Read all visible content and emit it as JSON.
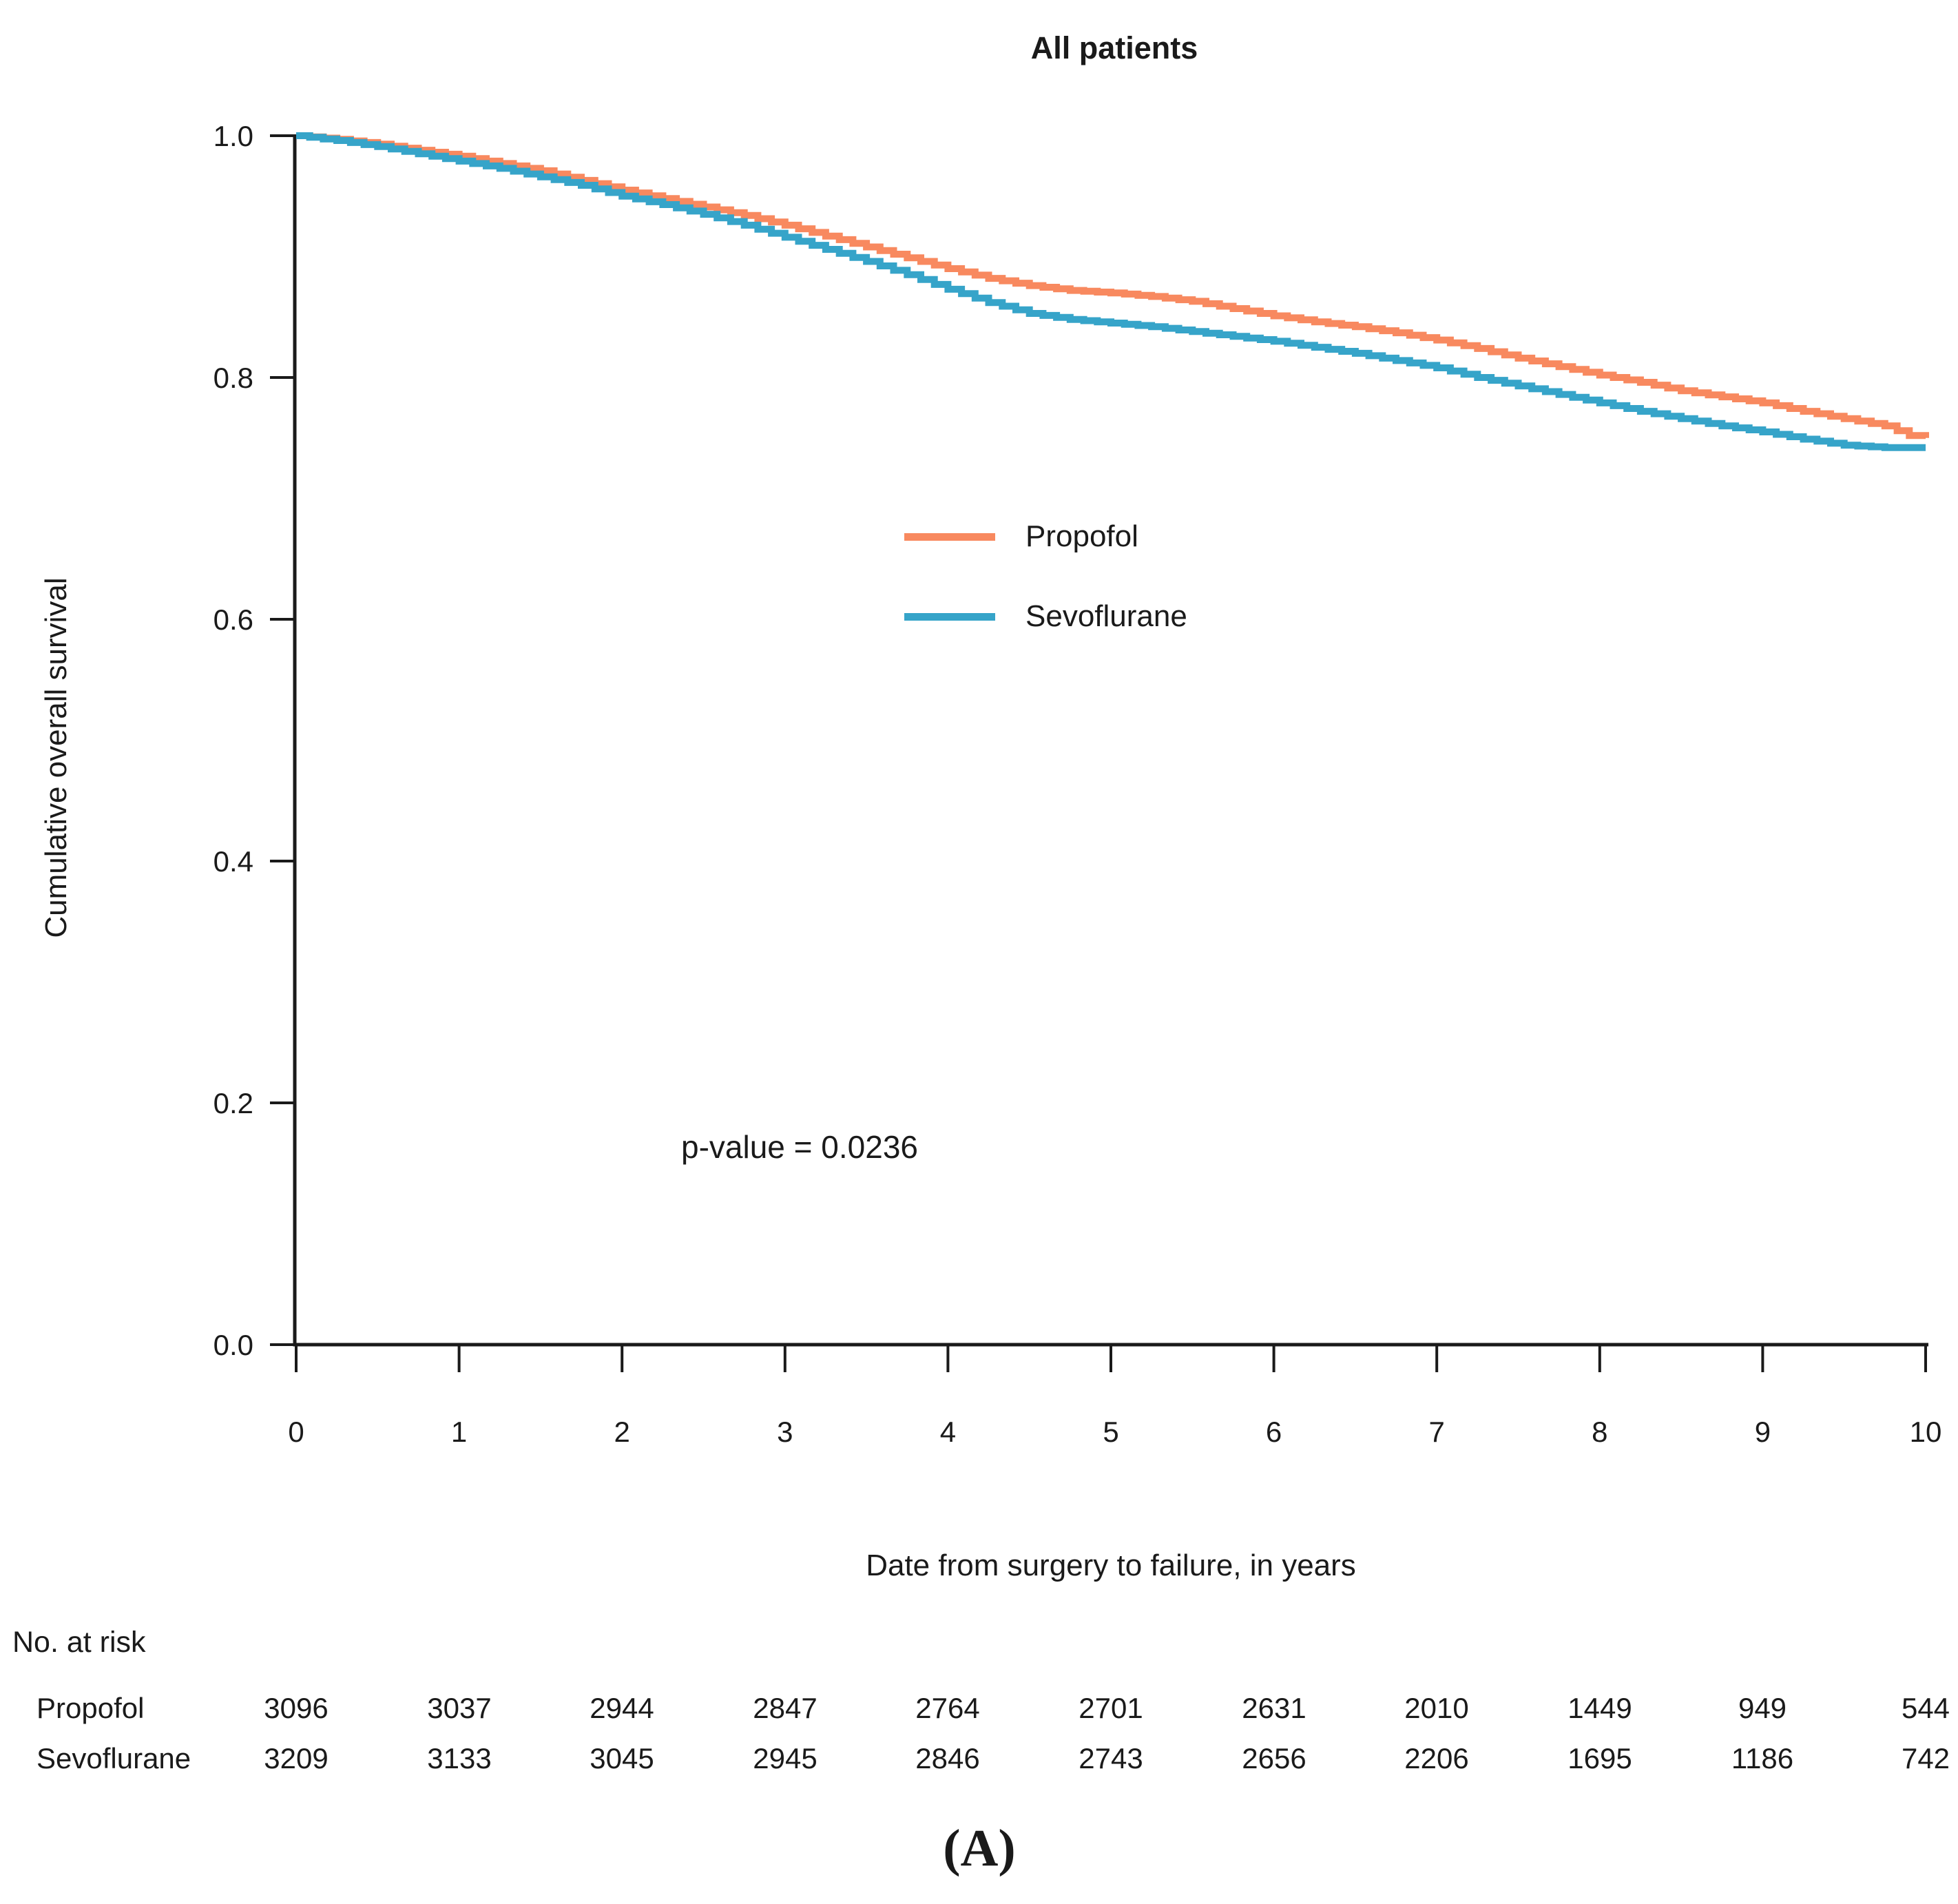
{
  "title": "All patients",
  "colors": {
    "propofol": "#F8895F",
    "sevoflurane": "#36A4C9",
    "axis": "#1a1a1a"
  },
  "legend": [
    {
      "label": "Propofol",
      "color": "#F8895F"
    },
    {
      "label": "Sevoflurane",
      "color": "#36A4C9"
    }
  ],
  "pvalue_text": "p-value = 0.0236",
  "ylabel": "Cumulative overall survival",
  "xlabel": "Date from surgery to failure, in years",
  "risk_table": {
    "header": "No. at risk",
    "rows": [
      {
        "label": "Propofol",
        "counts": [
          3096,
          3037,
          2944,
          2847,
          2764,
          2701,
          2631,
          2010,
          1449,
          949,
          544
        ]
      },
      {
        "label": "Sevoflurane",
        "counts": [
          3209,
          3133,
          3045,
          2945,
          2846,
          2743,
          2656,
          2206,
          1695,
          1186,
          742
        ]
      }
    ]
  },
  "caption": "(A)",
  "chart_data": {
    "type": "line",
    "subtype": "kaplan-meier-step",
    "title": "All patients",
    "xlabel": "Date from surgery to failure, in years",
    "ylabel": "Cumulative overall survival",
    "xlim": [
      0,
      10
    ],
    "ylim": [
      0.0,
      1.0
    ],
    "xticks": [
      0,
      1,
      2,
      3,
      4,
      5,
      6,
      7,
      8,
      9,
      10
    ],
    "xtick_labels": [
      "0",
      "1",
      "2",
      "3",
      "4",
      "5",
      "6",
      "7",
      "8",
      "9",
      "10"
    ],
    "yticks": [
      0.0,
      0.2,
      0.4,
      0.6,
      0.8,
      1.0
    ],
    "ytick_labels": [
      "0.0",
      "0.2",
      "0.4",
      "0.6",
      "0.8",
      "1.0"
    ],
    "grid": false,
    "legend_position": "upper-middle-left-of-plot",
    "annotation": "p-value = 0.0236",
    "series": [
      {
        "name": "Propofol",
        "color": "#F8895F",
        "points": [
          [
            0,
            1.0
          ],
          [
            0.25,
            0.997
          ],
          [
            0.5,
            0.993
          ],
          [
            0.75,
            0.988
          ],
          [
            1,
            0.983
          ],
          [
            1.25,
            0.977
          ],
          [
            1.5,
            0.971
          ],
          [
            1.75,
            0.963
          ],
          [
            2,
            0.955
          ],
          [
            2.25,
            0.948
          ],
          [
            2.5,
            0.941
          ],
          [
            2.75,
            0.934
          ],
          [
            3,
            0.926
          ],
          [
            3.25,
            0.917
          ],
          [
            3.5,
            0.908
          ],
          [
            3.75,
            0.899
          ],
          [
            4,
            0.89
          ],
          [
            4.25,
            0.882
          ],
          [
            4.5,
            0.876
          ],
          [
            4.75,
            0.872
          ],
          [
            5,
            0.87
          ],
          [
            5.25,
            0.867
          ],
          [
            5.5,
            0.863
          ],
          [
            5.75,
            0.857
          ],
          [
            6,
            0.851
          ],
          [
            6.25,
            0.846
          ],
          [
            6.5,
            0.842
          ],
          [
            6.75,
            0.837
          ],
          [
            7,
            0.831
          ],
          [
            7.25,
            0.824
          ],
          [
            7.5,
            0.816
          ],
          [
            7.75,
            0.809
          ],
          [
            8,
            0.802
          ],
          [
            8.25,
            0.796
          ],
          [
            8.5,
            0.789
          ],
          [
            8.75,
            0.784
          ],
          [
            9,
            0.779
          ],
          [
            9.25,
            0.772
          ],
          [
            9.5,
            0.766
          ],
          [
            9.75,
            0.76
          ],
          [
            9.9,
            0.752
          ],
          [
            10,
            0.75
          ]
        ]
      },
      {
        "name": "Sevoflurane",
        "color": "#36A4C9",
        "points": [
          [
            0,
            1.0
          ],
          [
            0.25,
            0.996
          ],
          [
            0.5,
            0.991
          ],
          [
            0.75,
            0.985
          ],
          [
            1,
            0.979
          ],
          [
            1.25,
            0.973
          ],
          [
            1.5,
            0.966
          ],
          [
            1.75,
            0.959
          ],
          [
            2,
            0.95
          ],
          [
            2.25,
            0.943
          ],
          [
            2.5,
            0.935
          ],
          [
            2.75,
            0.926
          ],
          [
            3,
            0.916
          ],
          [
            3.25,
            0.906
          ],
          [
            3.5,
            0.896
          ],
          [
            3.75,
            0.885
          ],
          [
            4,
            0.873
          ],
          [
            4.25,
            0.862
          ],
          [
            4.5,
            0.853
          ],
          [
            4.75,
            0.848
          ],
          [
            5,
            0.845
          ],
          [
            5.25,
            0.842
          ],
          [
            5.5,
            0.838
          ],
          [
            5.75,
            0.834
          ],
          [
            6,
            0.83
          ],
          [
            6.25,
            0.825
          ],
          [
            6.5,
            0.82
          ],
          [
            6.75,
            0.814
          ],
          [
            7,
            0.808
          ],
          [
            7.25,
            0.8
          ],
          [
            7.5,
            0.793
          ],
          [
            7.75,
            0.786
          ],
          [
            8,
            0.779
          ],
          [
            8.25,
            0.772
          ],
          [
            8.5,
            0.766
          ],
          [
            8.75,
            0.76
          ],
          [
            9,
            0.755
          ],
          [
            9.25,
            0.749
          ],
          [
            9.5,
            0.744
          ],
          [
            9.75,
            0.742
          ],
          [
            10,
            0.742
          ]
        ]
      }
    ],
    "risk_table": {
      "header": "No. at risk",
      "times": [
        0,
        1,
        2,
        3,
        4,
        5,
        6,
        7,
        8,
        9,
        10
      ],
      "rows": [
        {
          "name": "Propofol",
          "values": [
            3096,
            3037,
            2944,
            2847,
            2764,
            2701,
            2631,
            2010,
            1449,
            949,
            544
          ]
        },
        {
          "name": "Sevoflurane",
          "values": [
            3209,
            3133,
            3045,
            2945,
            2846,
            2743,
            2656,
            2206,
            1695,
            1186,
            742
          ]
        }
      ]
    }
  }
}
